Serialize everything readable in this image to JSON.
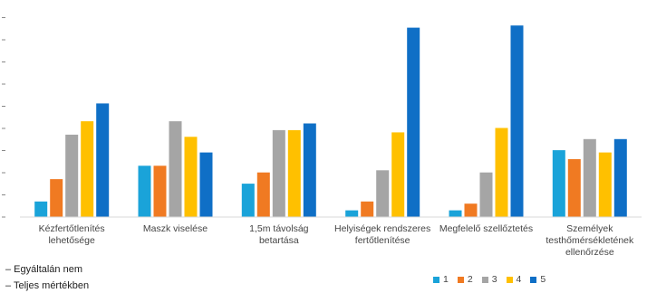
{
  "chart_data": {
    "type": "bar",
    "categories": [
      "Kézfertőtlenítés lehetősége",
      "Maszk viselése",
      "1,5m távolság betartása",
      "Helyiségek rendszeres fertőtlenítése",
      "Megfelelő szellőztetés",
      "Személyek testhőmérsékletének ellenőrzése"
    ],
    "series": [
      {
        "name": "1",
        "color": "#1aa3d9",
        "values": [
          7,
          23,
          15,
          3,
          3,
          30
        ]
      },
      {
        "name": "2",
        "color": "#f07a22",
        "values": [
          17,
          23,
          20,
          7,
          6,
          26
        ]
      },
      {
        "name": "3",
        "color": "#a5a5a5",
        "values": [
          37,
          43,
          39,
          21,
          20,
          35
        ]
      },
      {
        "name": "4",
        "color": "#ffc000",
        "values": [
          43,
          36,
          39,
          38,
          40,
          29
        ]
      },
      {
        "name": "5",
        "color": "#0f6fc6",
        "values": [
          51,
          29,
          42,
          85,
          86,
          35
        ]
      }
    ],
    "ylim": [
      0,
      95
    ],
    "grid": false,
    "legend_position": "bottom-right"
  },
  "notes": [
    "– Egyáltalán nem",
    "– Teljes mértékben"
  ]
}
